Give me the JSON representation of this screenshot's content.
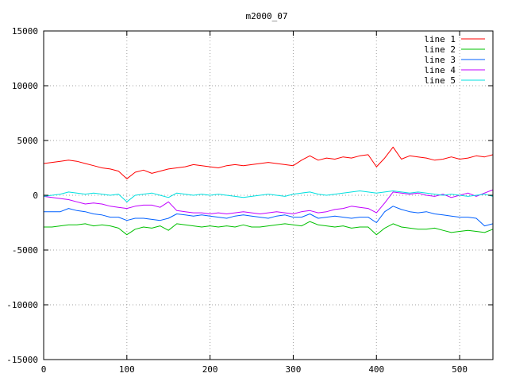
{
  "chart_data": {
    "type": "line",
    "title": "m2000_07",
    "xlabel": "",
    "ylabel": "",
    "xlim": [
      0,
      540
    ],
    "ylim": [
      -15000,
      15000
    ],
    "x_ticks": [
      0,
      100,
      200,
      300,
      400,
      500
    ],
    "y_ticks": [
      -15000,
      -10000,
      -5000,
      0,
      5000,
      10000,
      15000
    ],
    "grid": true,
    "legend_position": "top-right",
    "x": [
      0,
      10,
      20,
      30,
      40,
      50,
      60,
      70,
      80,
      90,
      100,
      110,
      120,
      130,
      140,
      150,
      160,
      170,
      180,
      190,
      200,
      210,
      220,
      230,
      240,
      250,
      260,
      270,
      280,
      290,
      300,
      310,
      320,
      330,
      340,
      350,
      360,
      370,
      380,
      390,
      400,
      410,
      420,
      430,
      440,
      450,
      460,
      470,
      480,
      490,
      500,
      510,
      520,
      530,
      540
    ],
    "series": [
      {
        "name": "line 1",
        "color": "#ff0000",
        "values": [
          2900,
          3000,
          3100,
          3200,
          3100,
          2900,
          2700,
          2500,
          2400,
          2200,
          1500,
          2100,
          2300,
          2000,
          2200,
          2400,
          2500,
          2600,
          2800,
          2700,
          2600,
          2500,
          2700,
          2800,
          2700,
          2800,
          2900,
          3000,
          2900,
          2800,
          2700,
          3200,
          3600,
          3200,
          3400,
          3300,
          3500,
          3400,
          3600,
          3700,
          2600,
          3400,
          4400,
          3300,
          3600,
          3500,
          3400,
          3200,
          3300,
          3500,
          3300,
          3400,
          3600,
          3500,
          3700
        ]
      },
      {
        "name": "line 2",
        "color": "#00c000",
        "values": [
          -2900,
          -2900,
          -2800,
          -2700,
          -2700,
          -2600,
          -2800,
          -2700,
          -2800,
          -3000,
          -3600,
          -3100,
          -2900,
          -3000,
          -2800,
          -3200,
          -2600,
          -2700,
          -2800,
          -2900,
          -2800,
          -2900,
          -2800,
          -2900,
          -2700,
          -2900,
          -2900,
          -2800,
          -2700,
          -2600,
          -2700,
          -2800,
          -2400,
          -2700,
          -2800,
          -2900,
          -2800,
          -3000,
          -2900,
          -2900,
          -3600,
          -3000,
          -2600,
          -2900,
          -3000,
          -3100,
          -3100,
          -3000,
          -3200,
          -3400,
          -3300,
          -3200,
          -3300,
          -3400,
          -3100
        ]
      },
      {
        "name": "line 3",
        "color": "#0060ff",
        "values": [
          -1500,
          -1500,
          -1500,
          -1200,
          -1400,
          -1500,
          -1700,
          -1800,
          -2000,
          -2000,
          -2300,
          -2100,
          -2100,
          -2200,
          -2300,
          -2100,
          -1700,
          -1800,
          -1900,
          -1800,
          -1900,
          -2000,
          -2100,
          -1900,
          -1800,
          -1900,
          -2000,
          -2100,
          -1900,
          -1800,
          -2000,
          -2000,
          -1700,
          -2100,
          -2000,
          -1900,
          -2000,
          -2100,
          -2000,
          -2000,
          -2500,
          -1500,
          -1000,
          -1300,
          -1500,
          -1600,
          -1500,
          -1700,
          -1800,
          -1900,
          -2000,
          -2000,
          -2100,
          -2800,
          -2600
        ]
      },
      {
        "name": "line 4",
        "color": "#c000ff",
        "values": [
          -100,
          -200,
          -300,
          -400,
          -600,
          -800,
          -700,
          -800,
          -1000,
          -1100,
          -1200,
          -1000,
          -900,
          -900,
          -1100,
          -600,
          -1400,
          -1500,
          -1600,
          -1600,
          -1700,
          -1600,
          -1700,
          -1600,
          -1500,
          -1600,
          -1700,
          -1600,
          -1500,
          -1600,
          -1700,
          -1500,
          -1400,
          -1600,
          -1500,
          -1300,
          -1200,
          -1000,
          -1100,
          -1200,
          -1600,
          -700,
          300,
          200,
          100,
          200,
          0,
          -100,
          100,
          -200,
          0,
          200,
          -100,
          200,
          500
        ]
      },
      {
        "name": "line 5",
        "color": "#00e0e0",
        "values": [
          -100,
          0,
          100,
          300,
          200,
          100,
          200,
          100,
          0,
          100,
          -600,
          0,
          100,
          200,
          0,
          -200,
          200,
          100,
          0,
          100,
          0,
          100,
          0,
          -100,
          -200,
          -100,
          0,
          100,
          0,
          -100,
          100,
          200,
          300,
          100,
          0,
          100,
          200,
          300,
          400,
          300,
          200,
          300,
          400,
          300,
          200,
          300,
          200,
          100,
          0,
          100,
          0,
          -100,
          0,
          100,
          -100
        ]
      }
    ]
  }
}
